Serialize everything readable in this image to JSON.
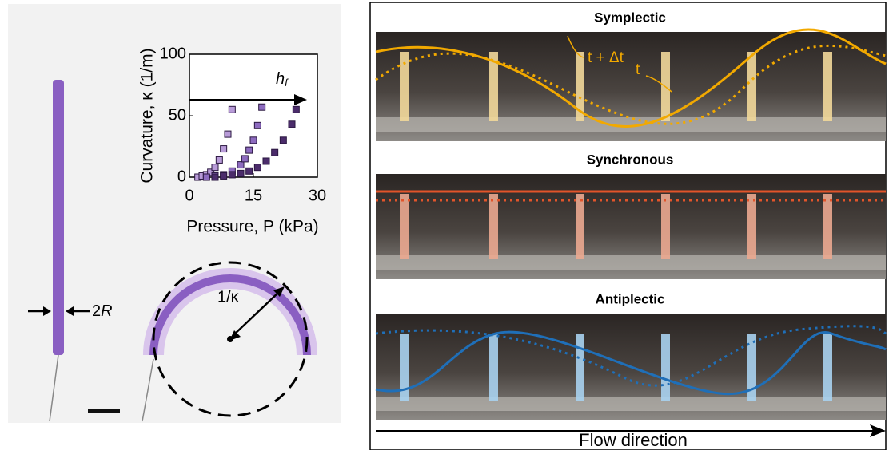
{
  "chart_data": {
    "type": "scatter",
    "xlabel": "Pressure, P (kPa)",
    "ylabel": "Curvature, κ (1/m)",
    "annotation": {
      "main": "h",
      "sub": "f"
    },
    "xlim": [
      0,
      30
    ],
    "ylim": [
      0,
      100
    ],
    "xticks": [
      0,
      15,
      30
    ],
    "yticks": [
      0,
      50,
      100
    ],
    "series": [
      {
        "color": "#b89bd8",
        "x": [
          2,
          3,
          4,
          5,
          6,
          7,
          8,
          9,
          10
        ],
        "values": [
          0,
          1,
          2,
          4,
          8,
          14,
          23,
          35,
          55
        ]
      },
      {
        "color": "#8d6bbf",
        "x": [
          4,
          6,
          8,
          10,
          12,
          13,
          14,
          15,
          16,
          17
        ],
        "values": [
          0,
          1,
          2,
          5,
          10,
          15,
          22,
          30,
          42,
          57
        ]
      },
      {
        "color": "#4b2c6b",
        "x": [
          6,
          8,
          10,
          12,
          14,
          16,
          18,
          20,
          22,
          24,
          25
        ],
        "values": [
          0,
          1,
          2,
          3,
          5,
          8,
          13,
          20,
          30,
          43,
          55
        ]
      }
    ]
  },
  "left_panel": {
    "radius_label": {
      "main": "2",
      "italic": "R"
    },
    "curvature_label": "1/κ"
  },
  "right_panel": {
    "panels": [
      {
        "title": "Symplectic"
      },
      {
        "title": "Synchronous"
      },
      {
        "title": "Antiplectic"
      }
    ],
    "time_labels": [
      "t + Δt",
      "t"
    ],
    "flow_label": "Flow direction"
  }
}
